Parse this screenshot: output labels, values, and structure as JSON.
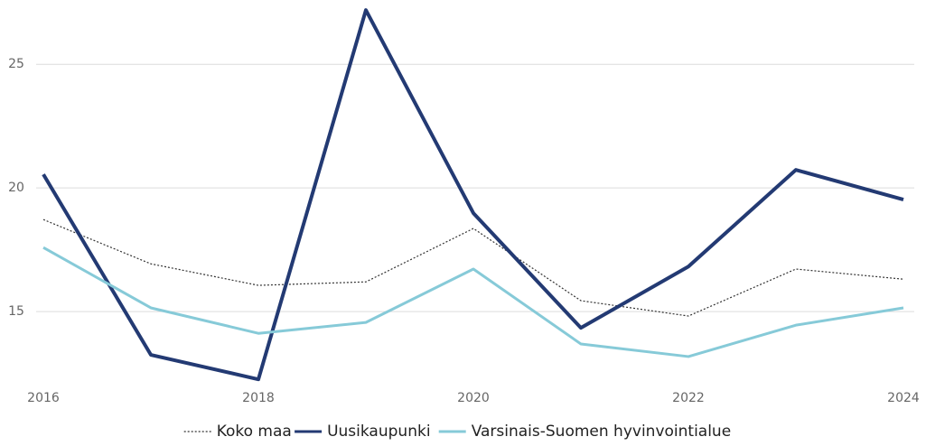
{
  "chart_data": {
    "type": "line",
    "x": [
      2016,
      2017,
      2018,
      2019,
      2020,
      2021,
      2022,
      2023,
      2024
    ],
    "xlim": [
      2016,
      2024
    ],
    "xticks": [
      2016,
      2018,
      2020,
      2022,
      2024
    ],
    "ylim": [
      11.9,
      27.6
    ],
    "yticks": [
      15,
      20,
      25
    ],
    "grid": true,
    "legend": "bottom",
    "series": [
      {
        "name": "Koko maa",
        "color": "#333333",
        "dash": "dotted",
        "values": [
          18.72,
          16.93,
          16.06,
          16.2,
          18.36,
          15.44,
          14.82,
          16.72,
          16.31
        ]
      },
      {
        "name": "Uusikaupunki",
        "color": "#233a73",
        "values": [
          20.55,
          13.25,
          12.26,
          27.19,
          18.98,
          14.34,
          16.82,
          20.73,
          19.53
        ]
      },
      {
        "name": "Varsinais-Suomen hyvinvointialue",
        "color": "#86cad8",
        "values": [
          17.59,
          15.15,
          14.12,
          14.56,
          16.72,
          13.69,
          13.18,
          14.45,
          15.15
        ]
      }
    ]
  }
}
